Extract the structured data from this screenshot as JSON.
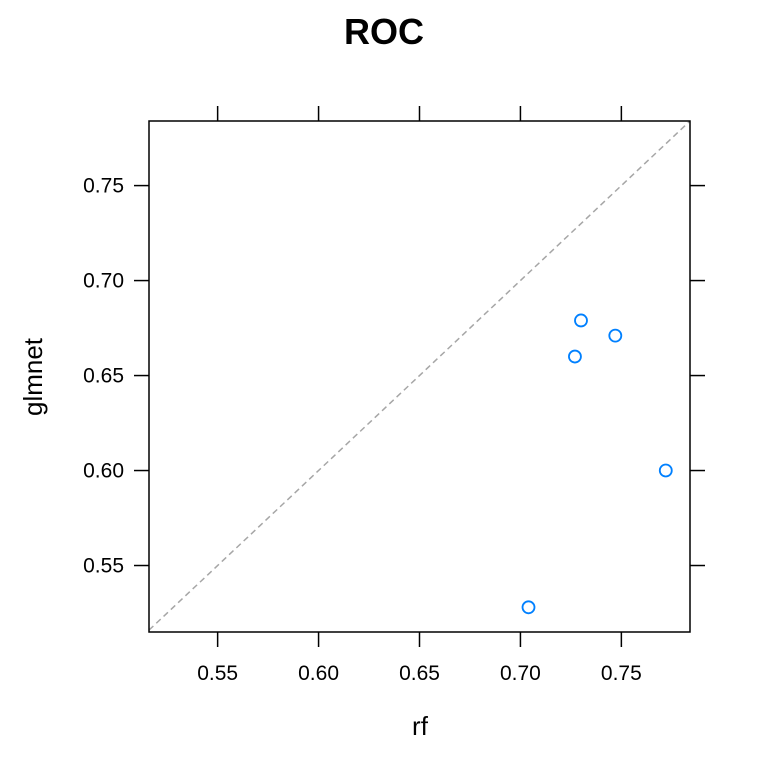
{
  "chart_data": {
    "type": "scatter",
    "title": "ROC",
    "xlabel": "rf",
    "ylabel": "glmnet",
    "xlim": [
      0.516,
      0.784
    ],
    "ylim": [
      0.515,
      0.784
    ],
    "x_ticks": [
      0.55,
      0.6,
      0.65,
      0.7,
      0.75
    ],
    "x_tick_labels": [
      "0.55",
      "0.60",
      "0.65",
      "0.70",
      "0.75"
    ],
    "y_ticks": [
      0.55,
      0.6,
      0.65,
      0.7,
      0.75
    ],
    "y_tick_labels": [
      "0.55",
      "0.60",
      "0.65",
      "0.70",
      "0.75"
    ],
    "reference_line": "y = x",
    "grid": false,
    "points": [
      {
        "x": 0.73,
        "y": 0.679
      },
      {
        "x": 0.747,
        "y": 0.671
      },
      {
        "x": 0.727,
        "y": 0.66
      },
      {
        "x": 0.772,
        "y": 0.6
      },
      {
        "x": 0.704,
        "y": 0.528
      }
    ],
    "colors": {
      "point": "#0080FF",
      "reference_line": "#A6A6A6",
      "axis": "#000000"
    }
  }
}
